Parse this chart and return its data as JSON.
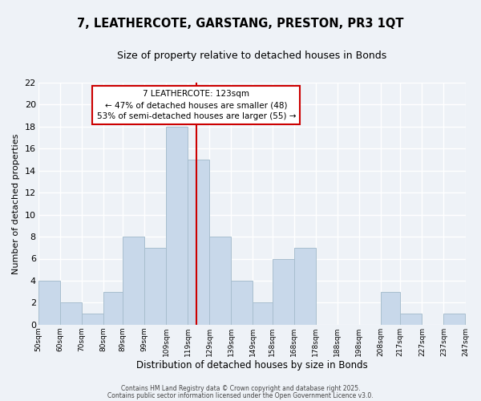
{
  "title": "7, LEATHERCOTE, GARSTANG, PRESTON, PR3 1QT",
  "subtitle": "Size of property relative to detached houses in Bonds",
  "xlabel": "Distribution of detached houses by size in Bonds",
  "ylabel": "Number of detached properties",
  "bar_color": "#c8d8ea",
  "bar_edge_color": "#a8bece",
  "background_color": "#eef2f7",
  "grid_color": "#ffffff",
  "bins": [
    50,
    60,
    70,
    80,
    89,
    99,
    109,
    119,
    129,
    139,
    149,
    158,
    168,
    178,
    188,
    198,
    208,
    217,
    227,
    237,
    247
  ],
  "bin_labels": [
    "50sqm",
    "60sqm",
    "70sqm",
    "80sqm",
    "89sqm",
    "99sqm",
    "109sqm",
    "119sqm",
    "129sqm",
    "139sqm",
    "149sqm",
    "158sqm",
    "168sqm",
    "178sqm",
    "188sqm",
    "198sqm",
    "208sqm",
    "217sqm",
    "227sqm",
    "237sqm",
    "247sqm"
  ],
  "counts": [
    4,
    2,
    1,
    3,
    8,
    7,
    18,
    15,
    8,
    4,
    2,
    6,
    7,
    0,
    0,
    0,
    3,
    1,
    0,
    1
  ],
  "vline_x": 123,
  "vline_color": "#cc0000",
  "annotation_line1": "7 LEATHERCOTE: 123sqm",
  "annotation_line2": "← 47% of detached houses are smaller (48)",
  "annotation_line3": "53% of semi-detached houses are larger (55) →",
  "annotation_box_color": "#ffffff",
  "annotation_border_color": "#cc0000",
  "ylim": [
    0,
    22
  ],
  "yticks": [
    0,
    2,
    4,
    6,
    8,
    10,
    12,
    14,
    16,
    18,
    20,
    22
  ],
  "footer1": "Contains HM Land Registry data © Crown copyright and database right 2025.",
  "footer2": "Contains public sector information licensed under the Open Government Licence v3.0."
}
